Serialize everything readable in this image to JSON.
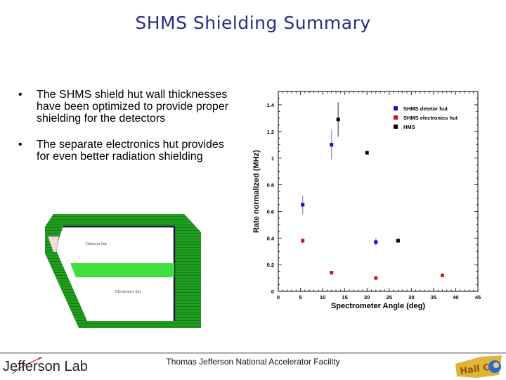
{
  "slide": {
    "title": "SHMS Shielding Summary",
    "bullets": [
      {
        "marker": "•",
        "text": "The SHMS shield hut wall thicknesses have been optimized to provide proper shielding for the detectors"
      },
      {
        "marker": "•",
        "text": "The separate electronics hut provides for even better radiation shielding"
      }
    ]
  },
  "diagram": {
    "labels": {
      "detector_hut": "Detector hut",
      "electronics_hut": "Electronics hut"
    },
    "colors": {
      "wall": "#1f9e1f",
      "wall_dark": "#167a16",
      "divider": "#3ee03e",
      "inner_edge": "#1a1a3a"
    }
  },
  "footer": {
    "logo_text": "Jefferson Lab",
    "facility": "Thomas Jefferson National Accelerator Facility",
    "hall_logo": "Hall C"
  },
  "chart_data": {
    "type": "scatter",
    "title": "",
    "xlabel": "Spectrometer Angle (deg)",
    "ylabel": "Rate normalized (MHz)",
    "xlim": [
      0,
      45
    ],
    "ylim": [
      0,
      1.5
    ],
    "xticks": [
      0,
      5,
      10,
      15,
      20,
      25,
      30,
      35,
      40,
      45
    ],
    "yticks": [
      0,
      0.2,
      0.4,
      0.6,
      0.8,
      1,
      1.2,
      1.4
    ],
    "ytick_labels": [
      "0",
      "0.2",
      "0.4",
      "0.6",
      "0.8",
      "1",
      "1.2",
      "1.4"
    ],
    "grid": false,
    "legend_position": "upper right",
    "series": [
      {
        "name": "SHMS detetor hut",
        "color": "#1010c8",
        "points": [
          {
            "x": 5.5,
            "y": 0.65,
            "err": 0.07
          },
          {
            "x": 12,
            "y": 1.1,
            "err": 0.11
          },
          {
            "x": 22,
            "y": 0.37,
            "err": 0.03
          }
        ]
      },
      {
        "name": "SHMS electronics hut",
        "color": "#d01818",
        "points": [
          {
            "x": 5.5,
            "y": 0.38,
            "err": 0.02
          },
          {
            "x": 12,
            "y": 0.14,
            "err": 0.0
          },
          {
            "x": 22,
            "y": 0.1,
            "err": 0.0
          },
          {
            "x": 37,
            "y": 0.12,
            "err": 0.0
          }
        ]
      },
      {
        "name": "HMS",
        "color": "#000000",
        "points": [
          {
            "x": 13.5,
            "y": 1.29,
            "err": 0.13
          },
          {
            "x": 20,
            "y": 1.04,
            "err": 0.0
          },
          {
            "x": 27,
            "y": 0.38,
            "err": 0.0
          }
        ]
      }
    ]
  }
}
